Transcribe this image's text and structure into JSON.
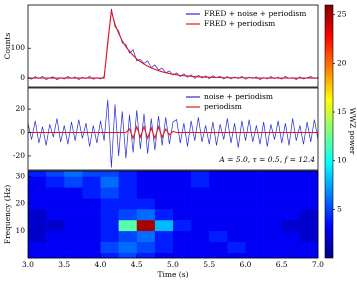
{
  "chart_data": [
    {
      "type": "line",
      "ylabel": "Counts",
      "legend": "upper right",
      "x": [
        3,
        3.05,
        3.1,
        3.15,
        3.2,
        3.25,
        3.3,
        3.35,
        3.4,
        3.45,
        3.5,
        3.55,
        3.6,
        3.65,
        3.7,
        3.75,
        3.8,
        3.85,
        3.9,
        3.95,
        4,
        4.05,
        4.1,
        4.15,
        4.2,
        4.25,
        4.3,
        4.35,
        4.4,
        4.45,
        4.5,
        4.55,
        4.6,
        4.65,
        4.7,
        4.75,
        4.8,
        4.85,
        4.9,
        4.95,
        5,
        5.05,
        5.1,
        5.15,
        5.2,
        5.25,
        5.3,
        5.35,
        5.4,
        5.45,
        5.5,
        5.55,
        5.6,
        5.65,
        5.7,
        5.75,
        5.8,
        5.85,
        5.9,
        5.95,
        6,
        6.05,
        6.1,
        6.15,
        6.2,
        6.25,
        6.3,
        6.35,
        6.4,
        6.45,
        6.5,
        6.55,
        6.6,
        6.65,
        6.7,
        6.75,
        6.8,
        6.85,
        6.9,
        6.95,
        7
      ],
      "xlim": [
        3,
        7
      ],
      "ylim": [
        -30,
        245
      ],
      "yticks": [
        0,
        100
      ],
      "series": [
        {
          "name": "FRED + noise + periodism",
          "color": "#2a2ad8",
          "values": [
            3,
            -4,
            5,
            -2,
            6,
            -5,
            1,
            4,
            -6,
            2,
            -3,
            5,
            -1,
            4,
            -5,
            3,
            -2,
            6,
            -4,
            2,
            -3,
            5,
            110,
            232,
            172,
            158,
            118,
            112,
            84,
            95,
            58,
            62,
            49,
            58,
            35,
            44,
            27,
            33,
            18,
            24,
            10,
            17,
            5,
            14,
            3,
            11,
            -1,
            9,
            0,
            7,
            -2,
            8,
            1,
            6,
            -3,
            5,
            -3,
            4,
            -2,
            6,
            -4,
            3,
            -1,
            4,
            -5,
            2,
            -3,
            5,
            -2,
            3,
            -4,
            6,
            -1,
            2,
            -5,
            4,
            -3,
            1,
            5,
            -2,
            3
          ]
        },
        {
          "name": "FRED + periodism",
          "color": "#e0191e",
          "values": [
            0,
            0,
            0,
            0,
            0,
            0,
            0,
            0,
            0,
            0,
            0,
            0,
            0,
            0,
            0,
            0,
            0,
            0,
            0,
            0,
            0,
            0,
            120,
            225,
            180,
            150,
            125,
            105,
            90,
            76,
            64,
            55,
            47,
            40,
            34,
            29,
            25,
            21,
            18,
            15,
            13,
            11,
            9,
            8,
            7,
            6,
            5,
            4,
            4,
            3,
            3,
            2,
            2,
            2,
            1,
            1,
            1,
            1,
            1,
            1,
            1,
            1,
            1,
            0,
            0,
            0,
            0,
            0,
            0,
            0,
            0,
            0,
            0,
            0,
            0,
            0,
            0,
            0,
            0,
            0,
            0
          ]
        }
      ]
    },
    {
      "type": "line",
      "legend": "upper right",
      "x": [
        3,
        3.05,
        3.1,
        3.15,
        3.2,
        3.25,
        3.3,
        3.35,
        3.4,
        3.45,
        3.5,
        3.55,
        3.6,
        3.65,
        3.7,
        3.75,
        3.8,
        3.85,
        3.9,
        3.95,
        4,
        4.05,
        4.1,
        4.15,
        4.2,
        4.25,
        4.3,
        4.35,
        4.4,
        4.45,
        4.5,
        4.55,
        4.6,
        4.65,
        4.7,
        4.75,
        4.8,
        4.85,
        4.9,
        4.95,
        5,
        5.05,
        5.1,
        5.15,
        5.2,
        5.25,
        5.3,
        5.35,
        5.4,
        5.45,
        5.5,
        5.55,
        5.6,
        5.65,
        5.7,
        5.75,
        5.8,
        5.85,
        5.9,
        5.95,
        6,
        6.05,
        6.1,
        6.15,
        6.2,
        6.25,
        6.3,
        6.35,
        6.4,
        6.45,
        6.5,
        6.55,
        6.6,
        6.65,
        6.7,
        6.75,
        6.8,
        6.85,
        6.9,
        6.95,
        7
      ],
      "xlim": [
        3,
        7
      ],
      "ylim": [
        -32,
        38
      ],
      "yticks": [
        -20,
        0,
        20
      ],
      "annotation": "A = 5.0, τ = 0.5, f = 12.4",
      "annotation_color": "#e0191e",
      "series": [
        {
          "name": "noise + periodism",
          "color": "#2a2ad8",
          "values": [
            8,
            -6,
            10,
            -9,
            5,
            -11,
            7,
            -4,
            12,
            -8,
            6,
            -10,
            9,
            -7,
            11,
            -5,
            8,
            -12,
            6,
            -9,
            10,
            -7,
            28,
            -30,
            24,
            -20,
            18,
            -22,
            15,
            -17,
            19,
            -14,
            16,
            -18,
            12,
            -15,
            14,
            -11,
            13,
            -10,
            9,
            11,
            -9,
            8,
            -12,
            10,
            -7,
            13,
            -8,
            6,
            -10,
            9,
            -11,
            7,
            -6,
            12,
            -9,
            8,
            -13,
            10,
            -7,
            11,
            -8,
            6,
            -10,
            9,
            -12,
            7,
            -6,
            10,
            -9,
            8,
            -11,
            12,
            -7,
            6,
            -10,
            9,
            -8,
            11,
            -6
          ]
        },
        {
          "name": "periodism",
          "color": "#e0191e",
          "values": [
            0,
            0,
            0,
            0,
            0,
            0,
            0,
            0,
            0,
            0,
            0,
            0,
            0,
            0,
            0,
            0,
            0,
            0,
            0,
            0,
            0,
            0,
            0,
            0,
            0,
            0,
            0,
            0,
            3,
            -5,
            5,
            -4,
            5,
            -5,
            4,
            -5,
            5,
            -4,
            3,
            -2,
            1,
            0,
            0,
            0,
            0,
            0,
            0,
            0,
            0,
            0,
            0,
            0,
            0,
            0,
            0,
            0,
            0,
            0,
            0,
            0,
            0,
            0,
            0,
            0,
            0,
            0,
            0,
            0,
            0,
            0,
            0,
            0,
            0,
            0,
            0,
            0,
            0,
            0,
            0,
            0,
            0
          ]
        }
      ]
    },
    {
      "type": "heatmap",
      "xlabel": "Time (s)",
      "ylabel": "Frequency (Hz)",
      "colorbar_label": "WWZ power",
      "xlim": [
        3,
        7
      ],
      "ylim": [
        0,
        32
      ],
      "xticks": [
        {
          "value": 3,
          "label": "3.0"
        },
        3.5,
        {
          "value": 4,
          "label": "4.0"
        },
        4.5,
        {
          "value": 5,
          "label": "5.0"
        },
        5.5,
        {
          "value": 6,
          "label": "6.0"
        },
        6.5,
        {
          "value": 7,
          "label": "7.0"
        }
      ],
      "yticks": [
        10,
        20,
        30
      ],
      "xbins": [
        3,
        3.25,
        3.5,
        3.75,
        4,
        4.25,
        4.5,
        4.75,
        5,
        5.25,
        5.5,
        5.75,
        6,
        6.25,
        6.5,
        6.75,
        7
      ],
      "ybins": [
        0,
        2,
        6,
        10,
        14,
        18,
        22,
        26,
        30,
        32
      ],
      "clim": [
        0,
        26
      ],
      "cticks": [
        5,
        10,
        15,
        20,
        25
      ],
      "z": [
        [
          3,
          3,
          3,
          3,
          4,
          5,
          4,
          3,
          3,
          3,
          3,
          3,
          3,
          3,
          3,
          3
        ],
        [
          3,
          3,
          3,
          3,
          5,
          6,
          5,
          4,
          3,
          3,
          3,
          4,
          3,
          3,
          3,
          3
        ],
        [
          2,
          3,
          3,
          3,
          4,
          5,
          6,
          4,
          3,
          3,
          4,
          3,
          3,
          3,
          3,
          2
        ],
        [
          2,
          2,
          3,
          3,
          4,
          12,
          25,
          8,
          4,
          3,
          3,
          3,
          3,
          3,
          2,
          2
        ],
        [
          2,
          3,
          3,
          3,
          4,
          5,
          6,
          4,
          3,
          3,
          3,
          3,
          3,
          3,
          3,
          2
        ],
        [
          3,
          3,
          3,
          3,
          4,
          4,
          4,
          3,
          3,
          3,
          3,
          3,
          3,
          3,
          3,
          3
        ],
        [
          3,
          3,
          3,
          4,
          5,
          4,
          3,
          3,
          3,
          3,
          3,
          3,
          3,
          3,
          3,
          3
        ],
        [
          3,
          4,
          5,
          4,
          6,
          4,
          3,
          3,
          3,
          4,
          3,
          3,
          3,
          3,
          3,
          3
        ],
        [
          4,
          5,
          6,
          5,
          5,
          4,
          3,
          3,
          3,
          4,
          3,
          3,
          3,
          3,
          3,
          3
        ]
      ]
    }
  ]
}
